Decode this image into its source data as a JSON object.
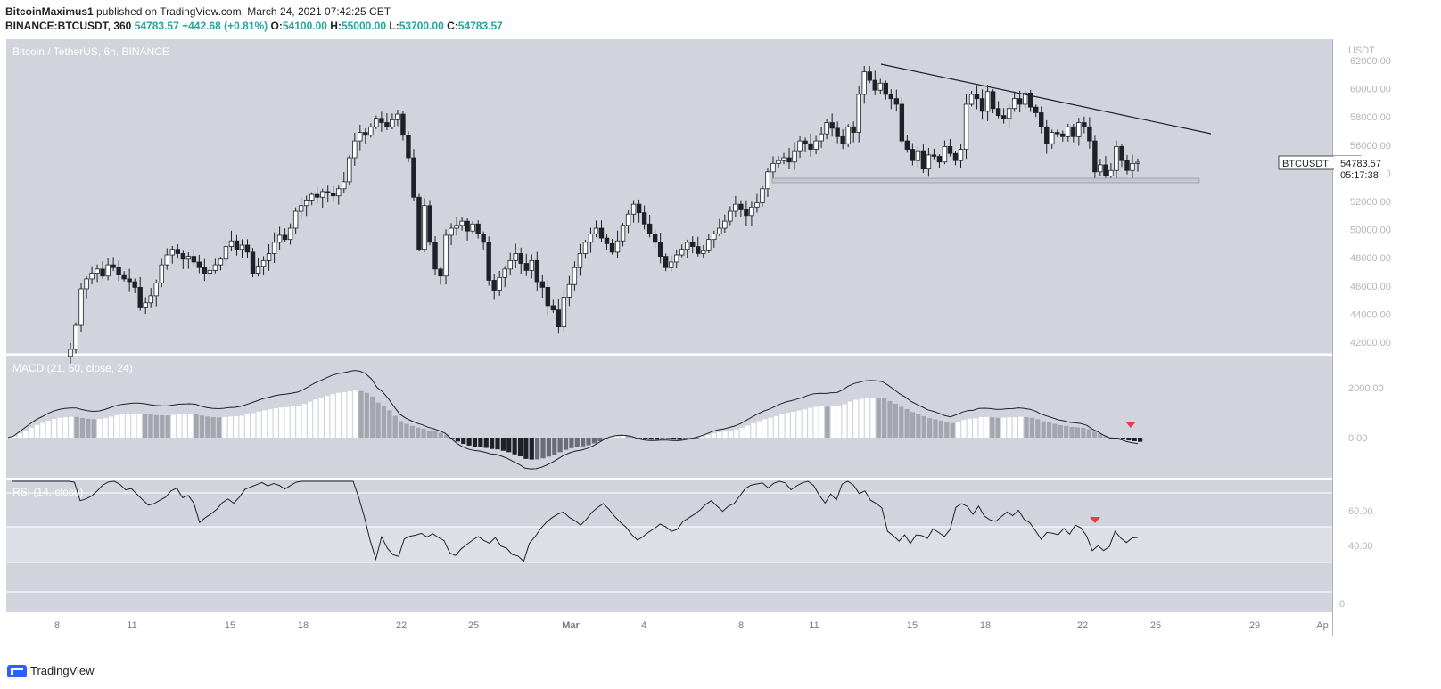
{
  "header": {
    "author": "BitcoinMaximus1",
    "published": "published on TradingView.com, March 24, 2021 07:42:25 CET",
    "symbol": "BINANCE:BTCUSDT, 360",
    "change": "54783.57",
    "change_pct": "+442.68 (+0.81%)",
    "o_label": "O:",
    "o": "54100.00",
    "h_label": "H:",
    "h": "55000.00",
    "l_label": "L:",
    "l": "53700.00",
    "c_label": "C:",
    "c": "54783.57"
  },
  "footer": {
    "brand": "TradingView"
  },
  "chart_data": {
    "type": "candlestick",
    "title": "Bitcoin / TetherUS, 6h, BINANCE",
    "currency": "USDT",
    "price_ticks": [
      "62000.00",
      "60000.00",
      "58000.00",
      "56000.00",
      "54000.00",
      "52000.00",
      "50000.00",
      "48000.00",
      "46000.00",
      "44000.00",
      "42000.00"
    ],
    "ylim": [
      41100,
      63800
    ],
    "last_price": {
      "symbol": "BTCUSDT",
      "value": "54783.57",
      "countdown": "05:17:38"
    },
    "x_ticks": [
      "8",
      "11",
      "15",
      "18",
      "22",
      "25",
      "Mar",
      "4",
      "8",
      "11",
      "15",
      "18",
      "22",
      "25",
      "29",
      "Ap"
    ],
    "x_tick_pos": [
      64,
      148,
      258,
      340,
      450,
      531,
      640,
      722,
      831,
      913,
      1023,
      1105,
      1214,
      1296,
      1407,
      1483
    ],
    "closes": [
      41500,
      43200,
      45800,
      46500,
      46900,
      47200,
      46700,
      47500,
      47300,
      46800,
      46500,
      46300,
      45900,
      44500,
      44800,
      45300,
      46200,
      47500,
      48200,
      48600,
      48300,
      47900,
      48100,
      47700,
      47300,
      46900,
      47100,
      47500,
      47900,
      48800,
      49200,
      48600,
      48900,
      48400,
      46900,
      47400,
      47800,
      48300,
      49100,
      49600,
      49300,
      50100,
      51300,
      51700,
      52100,
      52500,
      52300,
      52700,
      52600,
      52400,
      52900,
      53400,
      55100,
      56300,
      56900,
      56700,
      57300,
      57900,
      57600,
      57300,
      57800,
      58200,
      56700,
      55100,
      52300,
      48600,
      51700,
      49100,
      47200,
      46700,
      49600,
      50100,
      50300,
      50600,
      49900,
      50400,
      49700,
      49100,
      46400,
      45700,
      46600,
      47200,
      47800,
      48300,
      47600,
      47100,
      47800,
      46300,
      45900,
      44600,
      44300,
      43100,
      45200,
      46100,
      47300,
      48300,
      49100,
      49700,
      50100,
      49400,
      49000,
      48400,
      49200,
      50300,
      51100,
      51800,
      51200,
      50400,
      49700,
      49100,
      48100,
      47300,
      47700,
      48200,
      48600,
      49100,
      48800,
      48300,
      48500,
      49300,
      49700,
      50100,
      50600,
      51300,
      51800,
      51400,
      51000,
      51600,
      51900,
      52900,
      54100,
      54700,
      54900,
      55100,
      54800,
      55600,
      56300,
      56100,
      55700,
      56300,
      56800,
      57600,
      57200,
      56600,
      56100,
      57300,
      56900,
      59600,
      61200,
      60600,
      59900,
      60400,
      59600,
      59300,
      58900,
      56300,
      55700,
      54900,
      55600,
      54300,
      55300,
      55200,
      54800,
      55900,
      55400,
      54900,
      55700,
      58900,
      59600,
      59300,
      58400,
      59800,
      58600,
      58100,
      57900,
      58600,
      59300,
      58900,
      59700,
      58700,
      58300,
      57300,
      56100,
      56900,
      56800,
      56600,
      57300,
      56600,
      57600,
      57300,
      56300,
      54100,
      54600,
      53800,
      54200,
      55900,
      54900,
      54200,
      54700,
      54783
    ],
    "macd_ticks": [
      "2000.00",
      "0.00"
    ],
    "macd_label": "MACD (21, 50, close, 24)",
    "rsi_label": "RSI (14, close)",
    "rsi_ticks": [
      "60.00",
      "40.00",
      "0"
    ]
  }
}
